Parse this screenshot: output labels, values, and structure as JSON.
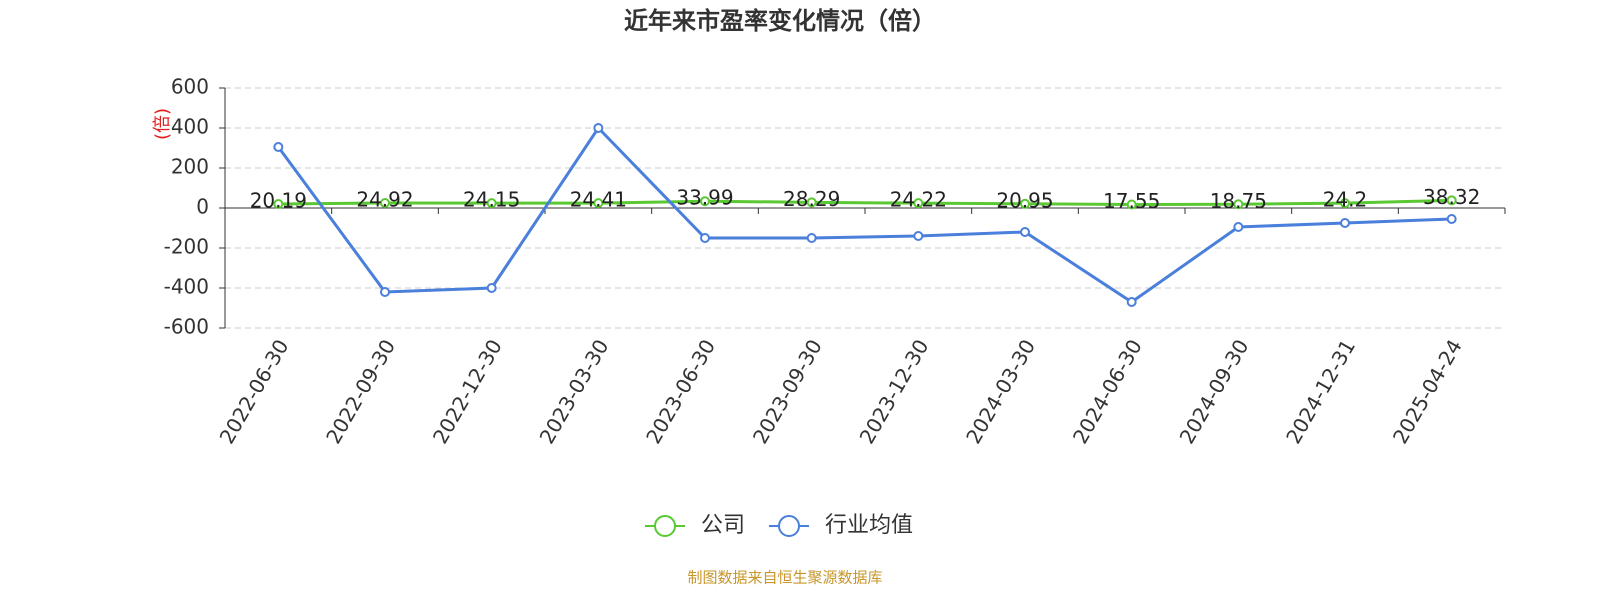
{
  "chart_data": {
    "type": "line",
    "title": "近年来市盈率变化情况（倍）",
    "y_label": "(倍)",
    "source": "制图数据来自恒生聚源数据库",
    "categories": [
      "2022-06-30",
      "2022-09-30",
      "2022-12-30",
      "2023-03-30",
      "2023-06-30",
      "2023-09-30",
      "2023-12-30",
      "2024-03-30",
      "2024-06-30",
      "2024-09-30",
      "2024-12-31",
      "2025-04-24"
    ],
    "series": [
      {
        "name": "公司",
        "color": "#5ac832",
        "show_labels": true,
        "values": [
          20.19,
          24.92,
          24.15,
          24.41,
          33.99,
          28.29,
          24.22,
          20.95,
          17.55,
          18.75,
          24.2,
          38.32
        ]
      },
      {
        "name": "行业均值",
        "color": "#4a7fdc",
        "show_labels": false,
        "values": [
          305,
          -420,
          -400,
          400,
          -150,
          -150,
          -140,
          -120,
          -470,
          -95,
          -75,
          -55
        ]
      }
    ],
    "ylim": [
      -600,
      600
    ],
    "yticks": [
      -600,
      -400,
      -200,
      0,
      200,
      400,
      600
    ],
    "grid": true
  }
}
